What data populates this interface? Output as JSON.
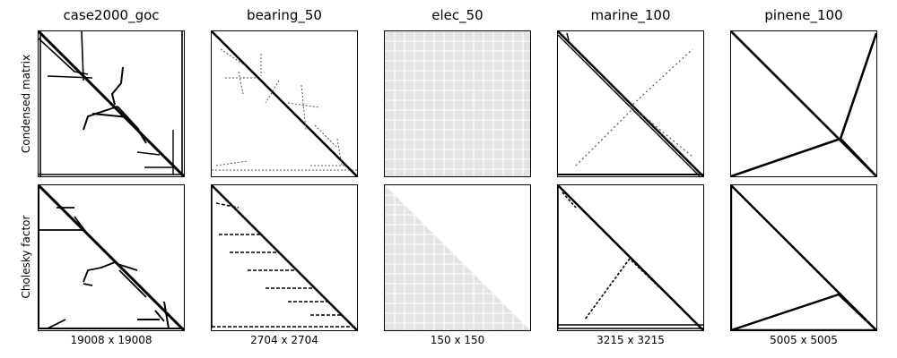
{
  "figure": {
    "columns": [
      {
        "name": "case2000_goc",
        "size": "19008 x 19008"
      },
      {
        "name": "bearing_50",
        "size": "2704 x 2704"
      },
      {
        "name": "elec_50",
        "size": "150 x 150"
      },
      {
        "name": "marine_100",
        "size": "3215 x 3215"
      },
      {
        "name": "pinene_100",
        "size": "5005 x 5005"
      }
    ],
    "rows": [
      "Condensed matrix",
      "Cholesky factor"
    ]
  }
}
